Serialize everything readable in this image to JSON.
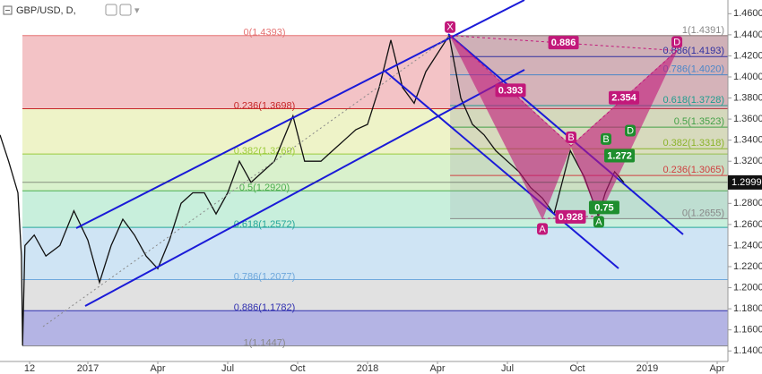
{
  "chart_data": {
    "type": "line",
    "title": "GBP/USD, D,",
    "xlim": [
      -3.77,
      27.46
    ],
    "ylim": [
      1.13,
      1.473
    ],
    "xticks": [
      {
        "value": -2.5,
        "label": "12"
      },
      {
        "value": 0,
        "label": "2017"
      },
      {
        "value": 3,
        "label": "Apr"
      },
      {
        "value": 6,
        "label": "Jul"
      },
      {
        "value": 9,
        "label": "Oct"
      },
      {
        "value": 12,
        "label": "2018"
      },
      {
        "value": 15,
        "label": "Apr"
      },
      {
        "value": 18,
        "label": "Jul"
      },
      {
        "value": 21,
        "label": "Oct"
      },
      {
        "value": 24,
        "label": "2019"
      },
      {
        "value": 27,
        "label": "Apr"
      }
    ],
    "yticks": [
      {
        "value": 1.46,
        "label": "1.4600"
      },
      {
        "value": 1.44,
        "label": "1.4400"
      },
      {
        "value": 1.42,
        "label": "1.4200"
      },
      {
        "value": 1.4,
        "label": "1.4000"
      },
      {
        "value": 1.38,
        "label": "1.3800"
      },
      {
        "value": 1.36,
        "label": "1.3600"
      },
      {
        "value": 1.34,
        "label": "1.3400"
      },
      {
        "value": 1.32,
        "label": "1.3200"
      },
      {
        "value": 1.3,
        "label": "1.3000"
      },
      {
        "value": 1.28,
        "label": "1.2800"
      },
      {
        "value": 1.26,
        "label": "1.2600"
      },
      {
        "value": 1.24,
        "label": "1.2400"
      },
      {
        "value": 1.22,
        "label": "1.2200"
      },
      {
        "value": 1.2,
        "label": "1.2000"
      },
      {
        "value": 1.18,
        "label": "1.1800"
      },
      {
        "value": 1.16,
        "label": "1.1600"
      },
      {
        "value": 1.14,
        "label": "1.1400"
      }
    ],
    "last_price": 1.2999,
    "series": [
      {
        "name": "GBP/USD",
        "color": "#111111",
        "x": [
          -3.77,
          -3.4,
          -3.0,
          -2.85,
          -2.8,
          -2.7,
          -2.3,
          -1.8,
          -1.2,
          -0.6,
          0,
          0.5,
          1,
          1.5,
          2,
          2.5,
          3,
          3.5,
          4,
          4.5,
          5,
          5.5,
          6,
          6.5,
          7,
          7.5,
          8,
          8.8,
          9.3,
          10,
          10.5,
          11,
          11.5,
          12,
          12.5,
          13,
          13.5,
          14,
          14.5,
          15.5,
          16,
          16.5,
          17,
          17.5,
          18,
          18.5,
          19,
          19.5,
          20,
          20.7,
          21.3,
          21.9,
          22.2,
          22.6,
          23
        ],
        "values": [
          1.345,
          1.32,
          1.29,
          1.23,
          1.145,
          1.24,
          1.25,
          1.23,
          1.24,
          1.273,
          1.245,
          1.205,
          1.24,
          1.265,
          1.25,
          1.23,
          1.218,
          1.245,
          1.28,
          1.29,
          1.29,
          1.27,
          1.29,
          1.32,
          1.3,
          1.31,
          1.32,
          1.363,
          1.32,
          1.32,
          1.33,
          1.34,
          1.35,
          1.355,
          1.39,
          1.435,
          1.39,
          1.375,
          1.405,
          1.4393,
          1.38,
          1.355,
          1.345,
          1.33,
          1.32,
          1.31,
          1.295,
          1.285,
          1.27,
          1.33,
          1.305,
          1.268,
          1.29,
          1.31,
          1.2999
        ]
      }
    ],
    "fib_left": [
      {
        "label": "0(1.4393)",
        "value": 1.4393,
        "color": "#e57373"
      },
      {
        "label": "0.236(1.3698)",
        "value": 1.3698,
        "color": "#c62828"
      },
      {
        "label": "0.382(1.3269)",
        "value": 1.3269,
        "color": "#9ccc3c"
      },
      {
        "label": "0.5(1.2920)",
        "value": 1.292,
        "color": "#4caf50"
      },
      {
        "label": "0.618(1.2572)",
        "value": 1.2572,
        "color": "#26a69a"
      },
      {
        "label": "0.786(1.2077)",
        "value": 1.2077,
        "color": "#6fa8dc"
      },
      {
        "label": "0.886(1.1782)",
        "value": 1.1782,
        "color": "#3030b0"
      },
      {
        "label": "1(1.1447)",
        "value": 1.1447,
        "color": "#888888"
      }
    ],
    "fib_band_colors": [
      "#f3c3c6",
      "#eef3c8",
      "#d9f1cc",
      "#c8efdc",
      "#cfe4f4",
      "#e1e1e1",
      "#b4b4e4"
    ],
    "fib_right": [
      {
        "label": "1(1.4391)",
        "value": 1.4391,
        "color": "#888888"
      },
      {
        "label": "0.886(1.4193)",
        "value": 1.4193,
        "color": "#3030a0"
      },
      {
        "label": "0.786(1.4020)",
        "value": 1.402,
        "color": "#4a86c8"
      },
      {
        "label": "0.618(1.3728)",
        "value": 1.3728,
        "color": "#1e9e8e"
      },
      {
        "label": "0.5(1.3523)",
        "value": 1.3523,
        "color": "#43a047"
      },
      {
        "label": "0.382(1.3318)",
        "value": 1.3318,
        "color": "#8bb32b"
      },
      {
        "label": "0.236(1.3065)",
        "value": 1.3065,
        "color": "#d04040"
      },
      {
        "label": "0(1.2655)",
        "value": 1.2655,
        "color": "#888888"
      }
    ],
    "fib_right_band_color": "#8c8c9c",
    "pattern": {
      "color": "#c2187a",
      "points": [
        {
          "label": "X",
          "x": 15.54,
          "value": 1.4393
        },
        {
          "label": "A",
          "x": 19.5,
          "value": 1.2655
        },
        {
          "label": "B",
          "x": 20.73,
          "value": 1.3346
        },
        {
          "label": "C",
          "x": 21.92,
          "value": 1.268
        },
        {
          "label": "D",
          "x": 25.27,
          "value": 1.425
        }
      ],
      "ratios": [
        "0.393",
        "0.928",
        "2.354",
        "0.886"
      ]
    },
    "pattern2": {
      "color": "#1e8e2e",
      "points": [
        {
          "label": "A",
          "x": 21.92,
          "value": 1.263
        },
        {
          "label": "B",
          "x": 22.23,
          "value": 1.333
        },
        {
          "label": "D",
          "x": 23.27,
          "value": 1.341
        }
      ],
      "ratios": [
        "1.272",
        "0.75"
      ]
    }
  }
}
